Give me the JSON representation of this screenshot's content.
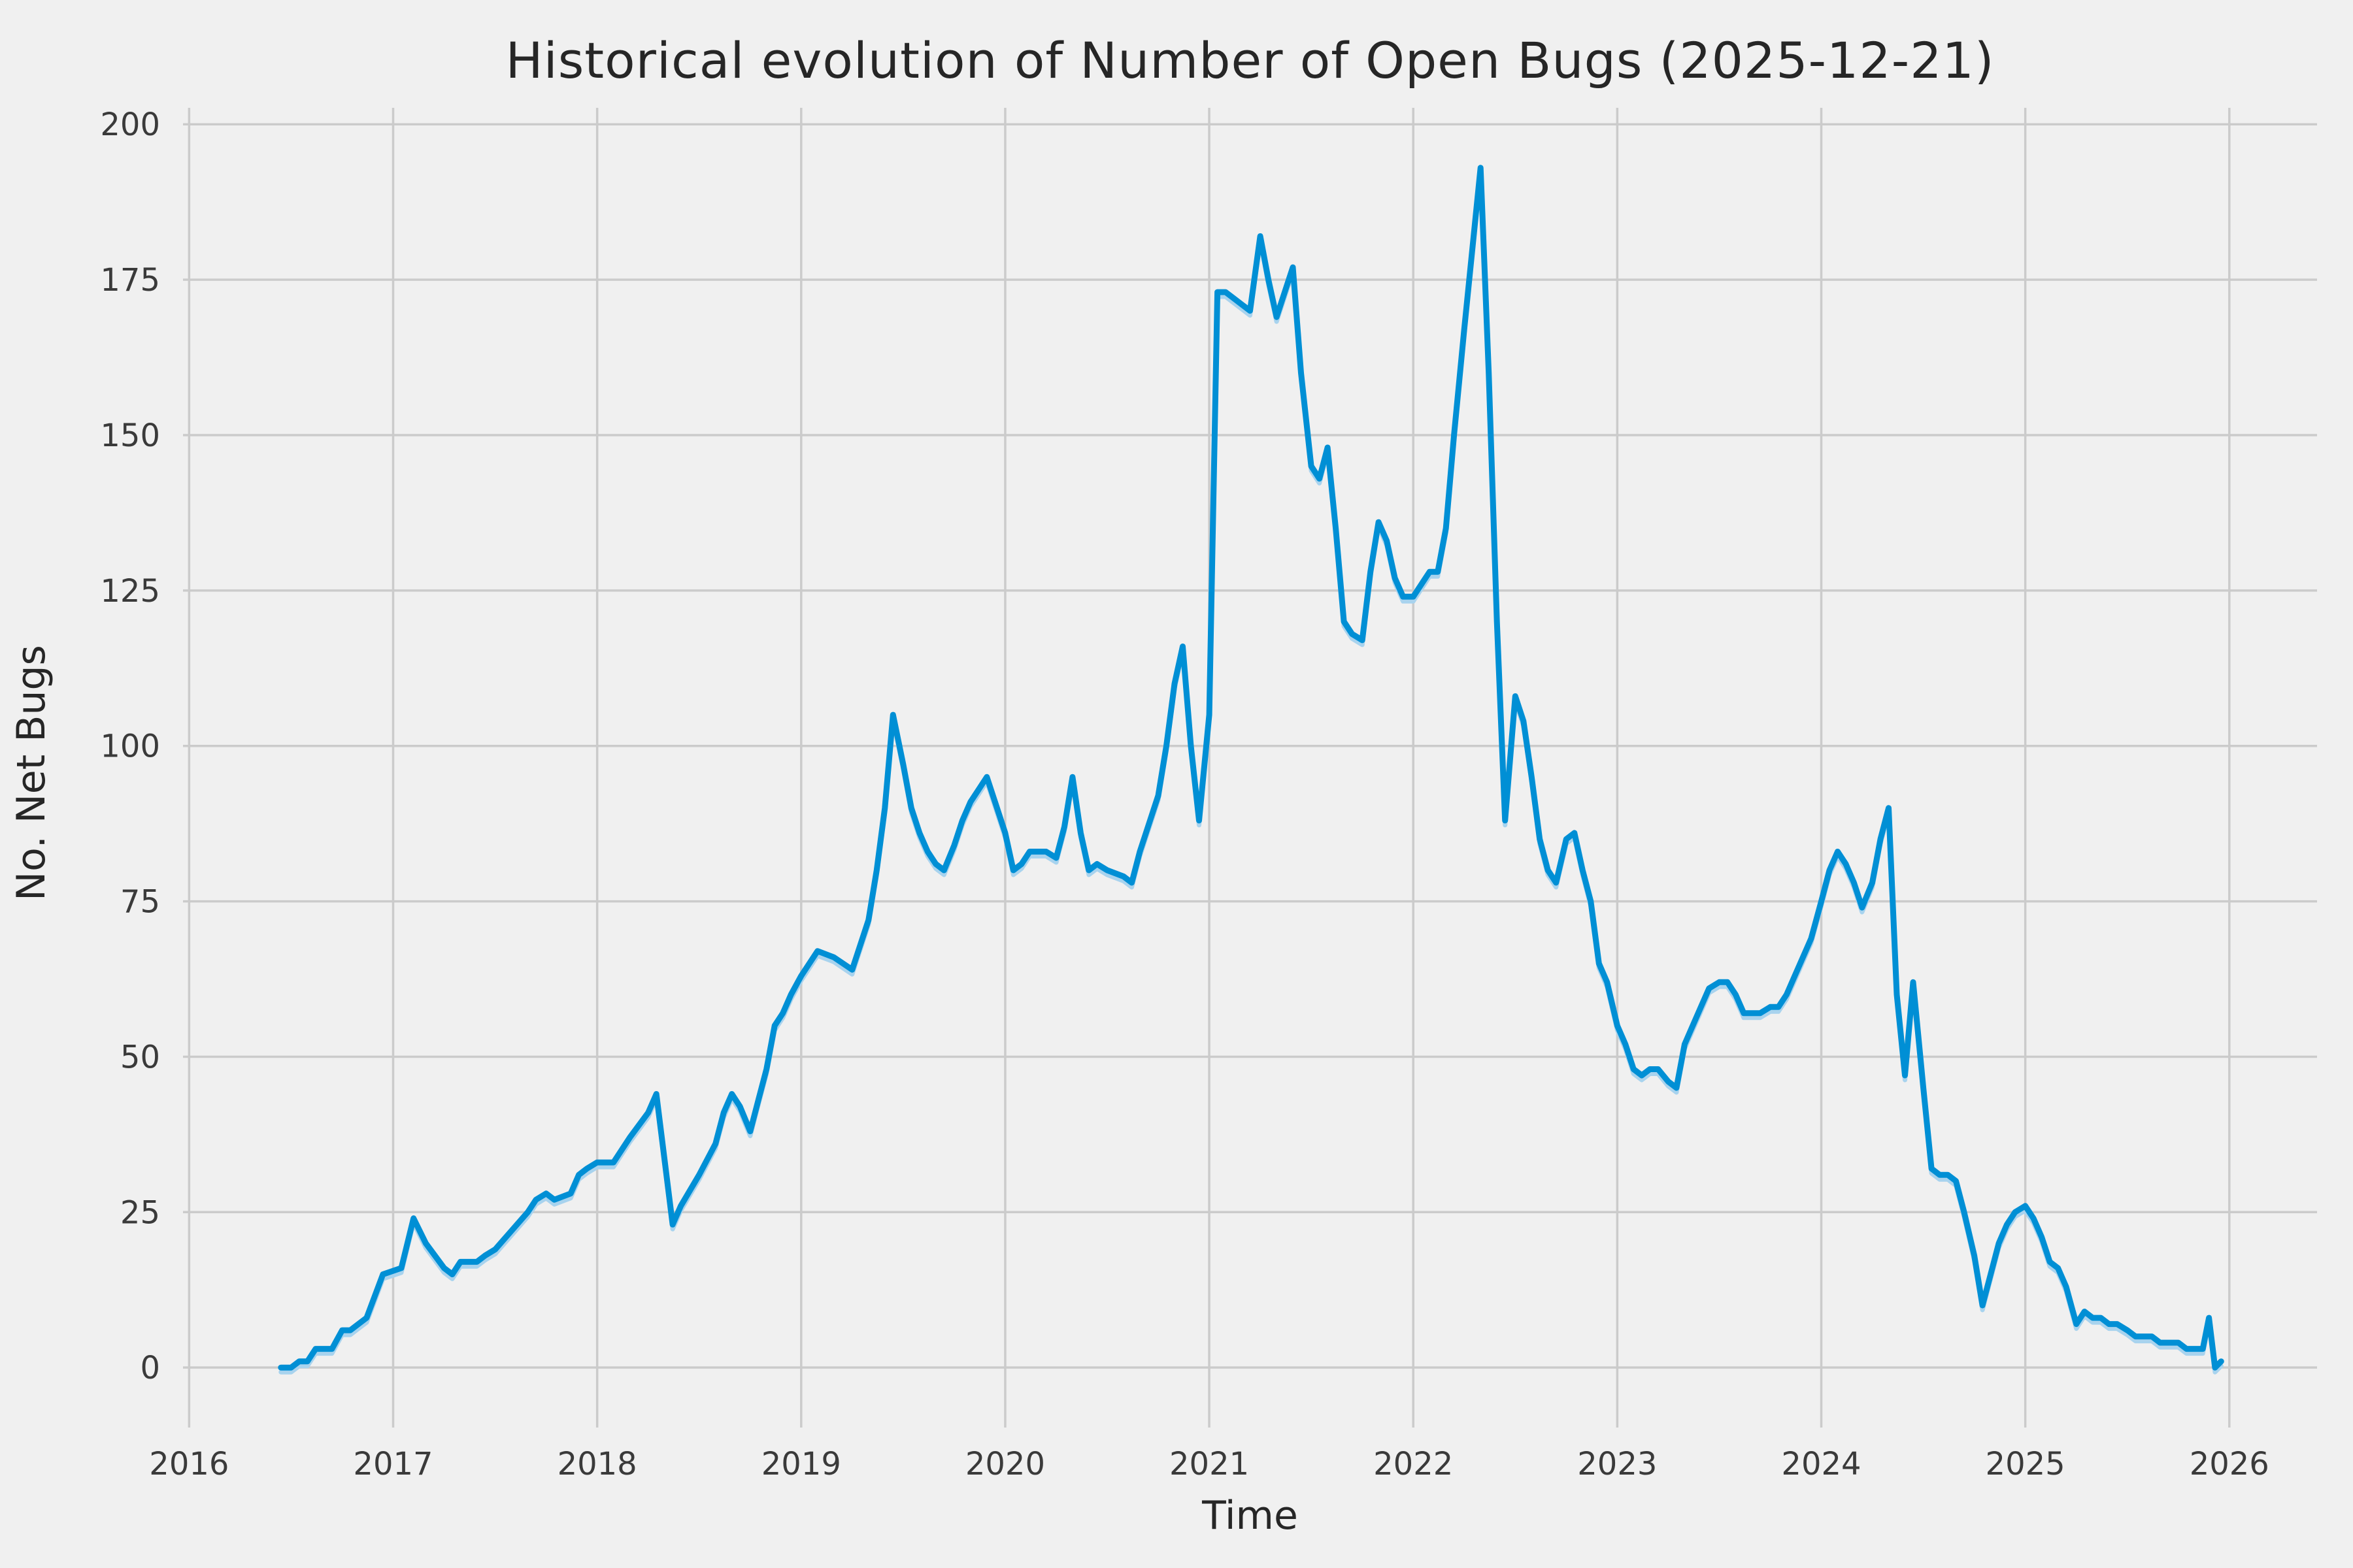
{
  "chart_data": {
    "type": "line",
    "title": "Historical evolution of Number of Open Bugs (2025-12-21)",
    "xlabel": "Time",
    "ylabel": "No. Net Bugs",
    "x_ticks": [
      2016,
      2017,
      2018,
      2019,
      2020,
      2021,
      2022,
      2023,
      2024,
      2025,
      2026
    ],
    "y_ticks": [
      0,
      25,
      50,
      75,
      100,
      125,
      150,
      175,
      200
    ],
    "xlim": [
      2015.97,
      2026.43
    ],
    "ylim": [
      -9.65,
      202.65
    ],
    "grid": true,
    "legend": "none",
    "style": {
      "background": "#f0f0f0",
      "grid_color": "#cbcbcb",
      "line_color": "#008fd5",
      "shadow_line_color": "#a8d3ee",
      "text_color": "#3a3a3a",
      "title_color": "#262626"
    },
    "series": [
      {
        "name": "open-bugs",
        "color": "#008fd5",
        "points": [
          [
            2016.45,
            0
          ],
          [
            2016.5,
            0
          ],
          [
            2016.54,
            1
          ],
          [
            2016.58,
            1
          ],
          [
            2016.62,
            3
          ],
          [
            2016.7,
            3
          ],
          [
            2016.75,
            6
          ],
          [
            2016.79,
            6
          ],
          [
            2016.83,
            7
          ],
          [
            2016.87,
            8
          ],
          [
            2016.95,
            15
          ],
          [
            2017.04,
            16
          ],
          [
            2017.1,
            24
          ],
          [
            2017.16,
            20
          ],
          [
            2017.25,
            16
          ],
          [
            2017.29,
            15
          ],
          [
            2017.33,
            17
          ],
          [
            2017.41,
            17
          ],
          [
            2017.45,
            18
          ],
          [
            2017.5,
            19
          ],
          [
            2017.58,
            22
          ],
          [
            2017.66,
            25
          ],
          [
            2017.7,
            27
          ],
          [
            2017.75,
            28
          ],
          [
            2017.79,
            27
          ],
          [
            2017.87,
            28
          ],
          [
            2017.91,
            31
          ],
          [
            2017.95,
            32
          ],
          [
            2018.0,
            33
          ],
          [
            2018.08,
            33
          ],
          [
            2018.16,
            37
          ],
          [
            2018.25,
            41
          ],
          [
            2018.29,
            44
          ],
          [
            2018.37,
            23
          ],
          [
            2018.41,
            26
          ],
          [
            2018.5,
            31
          ],
          [
            2018.58,
            36
          ],
          [
            2018.62,
            41
          ],
          [
            2018.66,
            44
          ],
          [
            2018.7,
            42
          ],
          [
            2018.75,
            38
          ],
          [
            2018.79,
            43
          ],
          [
            2018.83,
            48
          ],
          [
            2018.87,
            55
          ],
          [
            2018.91,
            57
          ],
          [
            2018.95,
            60
          ],
          [
            2019.0,
            63
          ],
          [
            2019.04,
            65
          ],
          [
            2019.08,
            67
          ],
          [
            2019.16,
            66
          ],
          [
            2019.25,
            64
          ],
          [
            2019.29,
            68
          ],
          [
            2019.33,
            72
          ],
          [
            2019.37,
            80
          ],
          [
            2019.41,
            90
          ],
          [
            2019.45,
            105
          ],
          [
            2019.5,
            97
          ],
          [
            2019.54,
            90
          ],
          [
            2019.58,
            86
          ],
          [
            2019.62,
            83
          ],
          [
            2019.66,
            81
          ],
          [
            2019.7,
            80
          ],
          [
            2019.75,
            84
          ],
          [
            2019.79,
            88
          ],
          [
            2019.83,
            91
          ],
          [
            2019.87,
            93
          ],
          [
            2019.91,
            95
          ],
          [
            2019.95,
            91
          ],
          [
            2020.0,
            86
          ],
          [
            2020.04,
            80
          ],
          [
            2020.08,
            81
          ],
          [
            2020.12,
            83
          ],
          [
            2020.2,
            83
          ],
          [
            2020.25,
            82
          ],
          [
            2020.29,
            87
          ],
          [
            2020.33,
            95
          ],
          [
            2020.37,
            86
          ],
          [
            2020.41,
            80
          ],
          [
            2020.45,
            81
          ],
          [
            2020.5,
            80
          ],
          [
            2020.58,
            79
          ],
          [
            2020.62,
            78
          ],
          [
            2020.66,
            83
          ],
          [
            2020.7,
            87
          ],
          [
            2020.75,
            92
          ],
          [
            2020.79,
            100
          ],
          [
            2020.83,
            110
          ],
          [
            2020.87,
            116
          ],
          [
            2020.91,
            100
          ],
          [
            2020.95,
            88
          ],
          [
            2021.0,
            105
          ],
          [
            2021.04,
            173
          ],
          [
            2021.08,
            173
          ],
          [
            2021.12,
            172
          ],
          [
            2021.2,
            170
          ],
          [
            2021.25,
            182
          ],
          [
            2021.29,
            175
          ],
          [
            2021.33,
            169
          ],
          [
            2021.41,
            177
          ],
          [
            2021.45,
            160
          ],
          [
            2021.5,
            145
          ],
          [
            2021.54,
            143
          ],
          [
            2021.58,
            148
          ],
          [
            2021.62,
            135
          ],
          [
            2021.66,
            120
          ],
          [
            2021.7,
            118
          ],
          [
            2021.75,
            117
          ],
          [
            2021.79,
            128
          ],
          [
            2021.83,
            136
          ],
          [
            2021.87,
            133
          ],
          [
            2021.91,
            127
          ],
          [
            2021.95,
            124
          ],
          [
            2022.0,
            124
          ],
          [
            2022.04,
            126
          ],
          [
            2022.08,
            128
          ],
          [
            2022.12,
            128
          ],
          [
            2022.16,
            135
          ],
          [
            2022.2,
            150
          ],
          [
            2022.25,
            167
          ],
          [
            2022.29,
            180
          ],
          [
            2022.33,
            193
          ],
          [
            2022.37,
            160
          ],
          [
            2022.41,
            120
          ],
          [
            2022.45,
            88
          ],
          [
            2022.5,
            108
          ],
          [
            2022.54,
            104
          ],
          [
            2022.58,
            95
          ],
          [
            2022.62,
            85
          ],
          [
            2022.66,
            80
          ],
          [
            2022.7,
            78
          ],
          [
            2022.75,
            85
          ],
          [
            2022.79,
            86
          ],
          [
            2022.83,
            80
          ],
          [
            2022.87,
            75
          ],
          [
            2022.91,
            65
          ],
          [
            2022.95,
            62
          ],
          [
            2023.0,
            55
          ],
          [
            2023.04,
            52
          ],
          [
            2023.08,
            48
          ],
          [
            2023.12,
            47
          ],
          [
            2023.16,
            48
          ],
          [
            2023.2,
            48
          ],
          [
            2023.25,
            46
          ],
          [
            2023.29,
            45
          ],
          [
            2023.33,
            52
          ],
          [
            2023.37,
            55
          ],
          [
            2023.41,
            58
          ],
          [
            2023.45,
            61
          ],
          [
            2023.5,
            62
          ],
          [
            2023.54,
            62
          ],
          [
            2023.58,
            60
          ],
          [
            2023.62,
            57
          ],
          [
            2023.66,
            57
          ],
          [
            2023.7,
            57
          ],
          [
            2023.75,
            58
          ],
          [
            2023.79,
            58
          ],
          [
            2023.83,
            60
          ],
          [
            2023.87,
            63
          ],
          [
            2023.91,
            66
          ],
          [
            2023.95,
            69
          ],
          [
            2024.0,
            75
          ],
          [
            2024.04,
            80
          ],
          [
            2024.08,
            83
          ],
          [
            2024.12,
            81
          ],
          [
            2024.16,
            78
          ],
          [
            2024.2,
            74
          ],
          [
            2024.25,
            78
          ],
          [
            2024.29,
            85
          ],
          [
            2024.33,
            90
          ],
          [
            2024.37,
            60
          ],
          [
            2024.41,
            47
          ],
          [
            2024.45,
            62
          ],
          [
            2024.5,
            45
          ],
          [
            2024.54,
            32
          ],
          [
            2024.58,
            31
          ],
          [
            2024.62,
            31
          ],
          [
            2024.66,
            30
          ],
          [
            2024.7,
            25
          ],
          [
            2024.75,
            18
          ],
          [
            2024.79,
            10
          ],
          [
            2024.83,
            15
          ],
          [
            2024.87,
            20
          ],
          [
            2024.91,
            23
          ],
          [
            2024.95,
            25
          ],
          [
            2025.0,
            26
          ],
          [
            2025.04,
            24
          ],
          [
            2025.08,
            21
          ],
          [
            2025.12,
            17
          ],
          [
            2025.16,
            16
          ],
          [
            2025.2,
            13
          ],
          [
            2025.25,
            7
          ],
          [
            2025.29,
            9
          ],
          [
            2025.33,
            8
          ],
          [
            2025.37,
            8
          ],
          [
            2025.41,
            7
          ],
          [
            2025.45,
            7
          ],
          [
            2025.5,
            6
          ],
          [
            2025.54,
            5
          ],
          [
            2025.58,
            5
          ],
          [
            2025.62,
            5
          ],
          [
            2025.66,
            4
          ],
          [
            2025.7,
            4
          ],
          [
            2025.75,
            4
          ],
          [
            2025.79,
            3
          ],
          [
            2025.83,
            3
          ],
          [
            2025.87,
            3
          ],
          [
            2025.9,
            8
          ],
          [
            2025.93,
            0
          ],
          [
            2025.96,
            1
          ]
        ]
      }
    ]
  }
}
